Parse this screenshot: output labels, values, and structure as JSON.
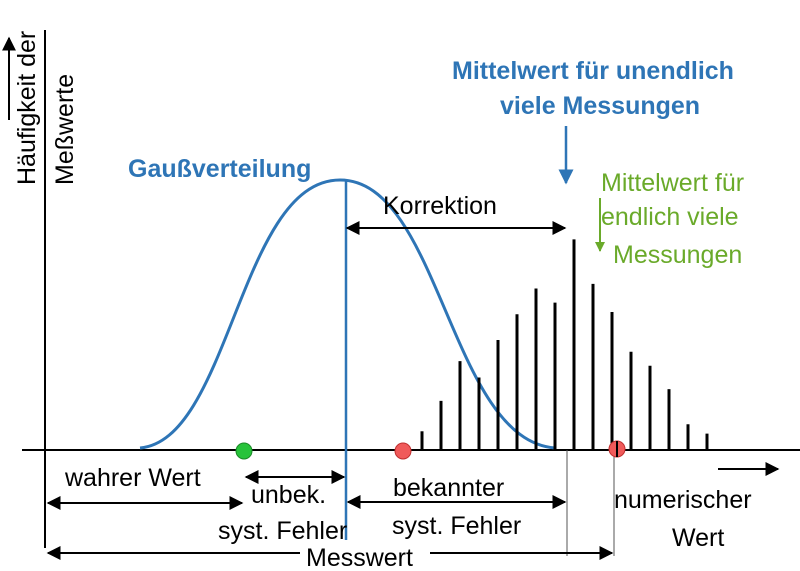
{
  "axis": {
    "y_label_line1": "Häufigkeit der",
    "y_label_line2": "Meßwerte",
    "x_label_line1": "numerischer",
    "x_label_line2": "Wert"
  },
  "gauss": {
    "label": "Gaußverteilung",
    "color": "#2e75b6"
  },
  "mean_infinite": {
    "line1": "Mittelwert für unendlich",
    "line2": "viele Messungen",
    "color": "#2e75b6"
  },
  "mean_finite": {
    "line1": "Mittelwert für",
    "line2": "endlich viele",
    "line3": "Messungen",
    "color": "#6aaa2a"
  },
  "labels": {
    "korrektion": "Korrektion",
    "wahrer_wert": "wahrer Wert",
    "unbek_line1": "unbek.",
    "unbek_line2": "syst. Fehler",
    "bekannter_line1": "bekannter",
    "bekannter_line2": "syst. Fehler",
    "messwert": "Messwert"
  },
  "markers": [
    {
      "name": "true-value-marker",
      "color": "#27c33a"
    },
    {
      "name": "corrected-value-marker",
      "color": "#f05a5a"
    },
    {
      "name": "measured-value-marker",
      "color": "#f05a5a"
    }
  ],
  "histogram_relative_heights": [
    0.08,
    0.21,
    0.38,
    0.31,
    0.47,
    0.58,
    0.69,
    0.63,
    0.9,
    0.71,
    0.59,
    0.42,
    0.36,
    0.26,
    0.11,
    0.07
  ]
}
